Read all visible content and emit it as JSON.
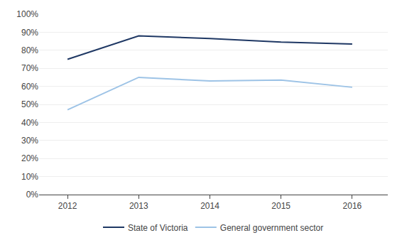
{
  "chart_data": {
    "type": "line",
    "x": [
      2012,
      2013,
      2014,
      2015,
      2016
    ],
    "series": [
      {
        "name": "State of Victoria",
        "color": "#1F3864",
        "values": [
          0.75,
          0.88,
          0.865,
          0.845,
          0.835
        ]
      },
      {
        "name": "General government sector",
        "color": "#9DC3E6",
        "values": [
          0.47,
          0.65,
          0.63,
          0.635,
          0.595
        ]
      }
    ],
    "xlim": [
      2011.6,
      2016.5
    ],
    "xticks": [
      2012,
      2013,
      2014,
      2015,
      2016
    ],
    "ylim": [
      0.0,
      1.0
    ],
    "yticks": [
      {
        "value": 0.0,
        "label": "0%"
      },
      {
        "value": 0.1,
        "label": "10%"
      },
      {
        "value": 0.2,
        "label": "20%"
      },
      {
        "value": 0.3,
        "label": "30%"
      },
      {
        "value": 0.4,
        "label": "40%"
      },
      {
        "value": 0.5,
        "label": "50%"
      },
      {
        "value": 0.6,
        "label": "60%"
      },
      {
        "value": 0.7,
        "label": "70%"
      },
      {
        "value": 0.8,
        "label": "80%"
      },
      {
        "value": 0.9,
        "label": "90%"
      },
      {
        "value": 1.0,
        "label": "100%"
      }
    ],
    "grid": true,
    "legend": "bottom"
  }
}
